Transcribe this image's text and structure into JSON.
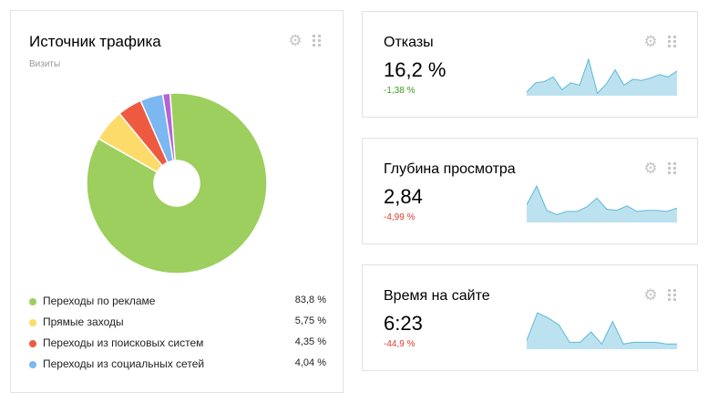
{
  "traffic_widget": {
    "title": "Источник трафика",
    "subtitle": "Визиты",
    "icons": [
      "gear-icon",
      "drag-handle-icon"
    ],
    "chart_data": {
      "type": "pie",
      "donut": true,
      "slices": [
        {
          "label": "Переходы по рекламе",
          "value": 83.8,
          "color": "#9ccf5d"
        },
        {
          "label": "Прямые заходы",
          "value": 5.75,
          "color": "#fddb6a"
        },
        {
          "label": "Переходы из поисковых систем",
          "value": 4.35,
          "color": "#ee5a40"
        },
        {
          "label": "Переходы из социальных сетей",
          "value": 4.04,
          "color": "#7bb7f0"
        },
        {
          "label": "",
          "value": 1.3,
          "color": "#b561d8"
        }
      ]
    },
    "legend": [
      {
        "label": "Переходы по рекламе",
        "value": "83,8 %",
        "color": "#9ccf5d"
      },
      {
        "label": "Прямые заходы",
        "value": "5,75 %",
        "color": "#fddb6a"
      },
      {
        "label": "Переходы из поисковых систем",
        "value": "4,35 %",
        "color": "#ee5a40"
      },
      {
        "label": "Переходы из социальных сетей",
        "value": "4,04 %",
        "color": "#7bb7f0"
      }
    ]
  },
  "metrics": [
    {
      "title": "Отказы",
      "value": "16,2 %",
      "delta": "-1,38 %",
      "delta_color": "#3f9e1b",
      "chart_data": {
        "type": "area",
        "values": [
          3,
          11,
          12,
          16,
          5,
          11,
          9,
          31,
          2,
          10,
          22,
          9,
          14,
          13,
          15,
          18,
          16,
          21
        ]
      }
    },
    {
      "title": "Глубина просмотра",
      "value": "2,84",
      "delta": "-4,99 %",
      "delta_color": "#e03b2e",
      "chart_data": {
        "type": "area",
        "values": [
          16,
          33,
          11,
          7,
          10,
          10,
          14,
          22,
          12,
          11,
          15,
          10,
          11,
          11,
          10,
          13
        ]
      }
    },
    {
      "title": "Время на сайте",
      "value": "6:23",
      "delta": "-44,9 %",
      "delta_color": "#e03b2e",
      "chart_data": {
        "type": "area",
        "values": [
          5,
          21,
          18,
          14,
          4,
          4,
          10,
          3,
          16,
          3,
          4,
          4,
          4,
          3,
          3
        ]
      }
    }
  ],
  "colors": {
    "border": "#e2e2e2",
    "icon": "#c6c6c6",
    "spark_fill": "#bde2ef",
    "spark_line": "#5bb8d9",
    "negative_good": "#3f9e1b",
    "negative_bad": "#e03b2e"
  }
}
